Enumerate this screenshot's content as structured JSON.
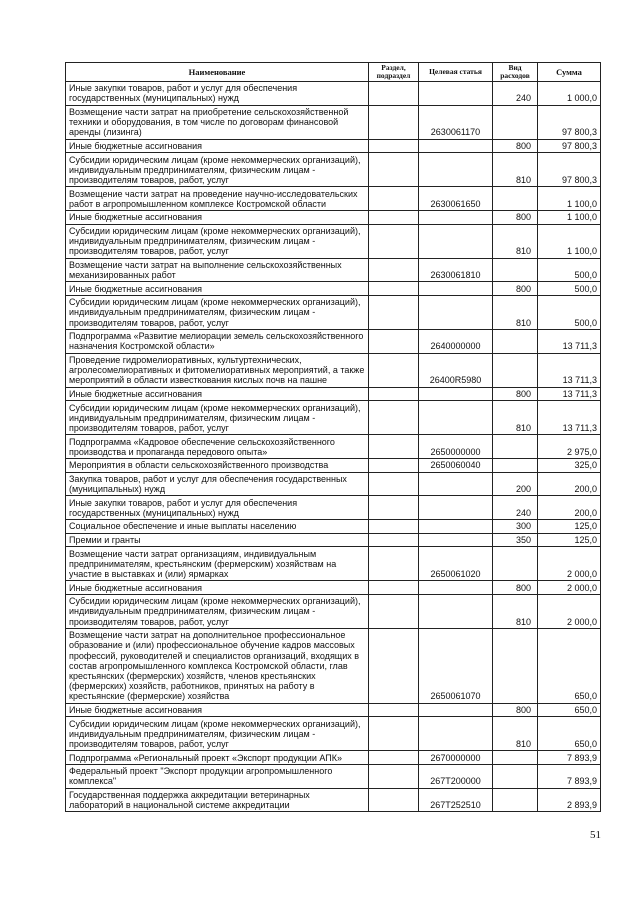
{
  "table": {
    "headers": [
      "Наименование",
      "Раздел, подраздел",
      "Целевая статья",
      "Вид расходов",
      "Сумма"
    ],
    "rows": [
      {
        "name": "Иные закупки товаров, работ и услуг для обеспечения государственных (муниципальных) нужд",
        "section": "",
        "target": "",
        "type": "240",
        "sum": "1 000,0"
      },
      {
        "name": "Возмещение части затрат на приобретение сельскохозяйственной техники и оборудования, в том числе по договорам финансовой аренды (лизинга)",
        "section": "",
        "target": "2630061170",
        "type": "",
        "sum": "97 800,3"
      },
      {
        "name": "Иные бюджетные ассигнования",
        "section": "",
        "target": "",
        "type": "800",
        "sum": "97 800,3"
      },
      {
        "name": "Субсидии юридическим лицам (кроме некоммерческих организаций), индивидуальным предпринимателям, физическим лицам - производителям товаров, работ, услуг",
        "section": "",
        "target": "",
        "type": "810",
        "sum": "97 800,3"
      },
      {
        "name": "Возмещение части затрат на проведение научно-исследовательских работ в агропромышленном комплексе Костромской области",
        "section": "",
        "target": "2630061650",
        "type": "",
        "sum": "1 100,0"
      },
      {
        "name": "Иные бюджетные ассигнования",
        "section": "",
        "target": "",
        "type": "800",
        "sum": "1 100,0"
      },
      {
        "name": "Субсидии юридическим лицам (кроме некоммерческих организаций), индивидуальным предпринимателям, физическим лицам - производителям товаров, работ, услуг",
        "section": "",
        "target": "",
        "type": "810",
        "sum": "1 100,0"
      },
      {
        "name": "Возмещение части затрат на выполнение сельскохозяйственных механизированных работ",
        "section": "",
        "target": "2630061810",
        "type": "",
        "sum": "500,0"
      },
      {
        "name": "Иные бюджетные ассигнования",
        "section": "",
        "target": "",
        "type": "800",
        "sum": "500,0"
      },
      {
        "name": "Субсидии юридическим лицам (кроме некоммерческих организаций), индивидуальным предпринимателям, физическим лицам - производителям товаров, работ, услуг",
        "section": "",
        "target": "",
        "type": "810",
        "sum": "500,0"
      },
      {
        "name": "Подпрограмма «Развитие мелиорации земель сельскохозяйственного назначения Костромской области»",
        "section": "",
        "target": "2640000000",
        "type": "",
        "sum": "13 711,3"
      },
      {
        "name": "Проведение гидромелиоративных, культуртехнических, агролесомелиоративных и фитомелиоративных мероприятий, а также мероприятий в области известкования кислых почв на пашне",
        "section": "",
        "target": "26400R5980",
        "type": "",
        "sum": "13 711,3"
      },
      {
        "name": "Иные бюджетные ассигнования",
        "section": "",
        "target": "",
        "type": "800",
        "sum": "13 711,3"
      },
      {
        "name": "Субсидии юридическим лицам (кроме некоммерческих организаций), индивидуальным предпринимателям, физическим лицам - производителям товаров, работ, услуг",
        "section": "",
        "target": "",
        "type": "810",
        "sum": "13 711,3"
      },
      {
        "name": "Подпрограмма «Кадровое обеспечение сельскохозяйственного производства и пропаганда передового опыта»",
        "section": "",
        "target": "2650000000",
        "type": "",
        "sum": "2 975,0"
      },
      {
        "name": "Мероприятия в области сельскохозяйственного производства",
        "section": "",
        "target": "2650060040",
        "type": "",
        "sum": "325,0"
      },
      {
        "name": "Закупка товаров, работ и услуг для обеспечения государственных (муниципальных) нужд",
        "section": "",
        "target": "",
        "type": "200",
        "sum": "200,0"
      },
      {
        "name": "Иные закупки товаров, работ и услуг для обеспечения государственных (муниципальных) нужд",
        "section": "",
        "target": "",
        "type": "240",
        "sum": "200,0"
      },
      {
        "name": "Социальное обеспечение и иные выплаты населению",
        "section": "",
        "target": "",
        "type": "300",
        "sum": "125,0"
      },
      {
        "name": "Премии и гранты",
        "section": "",
        "target": "",
        "type": "350",
        "sum": "125,0"
      },
      {
        "name": "Возмещение части затрат организациям, индивидуальным предпринимателям, крестьянским (фермерским) хозяйствам на участие в выставках и (или) ярмарках",
        "section": "",
        "target": "2650061020",
        "type": "",
        "sum": "2 000,0"
      },
      {
        "name": "Иные бюджетные ассигнования",
        "section": "",
        "target": "",
        "type": "800",
        "sum": "2 000,0"
      },
      {
        "name": "Субсидии юридическим лицам (кроме некоммерческих организаций), индивидуальным предпринимателям, физическим лицам - производителям товаров, работ, услуг",
        "section": "",
        "target": "",
        "type": "810",
        "sum": "2 000,0"
      },
      {
        "name": "Возмещение части затрат на дополнительное профессиональное образование и (или) профессиональное обучение кадров массовых профессий, руководителей и специалистов организаций, входящих в состав агропромышленного комплекса Костромской области, глав крестьянских (фермерских) хозяйств, членов крестьянских (фермерских) хозяйств, работников, принятых на работу в крестьянские (фермерские) хозяйства",
        "section": "",
        "target": "2650061070",
        "type": "",
        "sum": "650,0"
      },
      {
        "name": "Иные бюджетные ассигнования",
        "section": "",
        "target": "",
        "type": "800",
        "sum": "650,0"
      },
      {
        "name": "Субсидии юридическим лицам (кроме некоммерческих организаций), индивидуальным предпринимателям, физическим лицам - производителям товаров, работ, услуг",
        "section": "",
        "target": "",
        "type": "810",
        "sum": "650,0"
      },
      {
        "name": "Подпрограмма «Региональный проект «Экспорт продукции АПК»",
        "section": "",
        "target": "2670000000",
        "type": "",
        "sum": "7 893,9"
      },
      {
        "name": "Федеральный проект \"Экспорт продукции агропромышленного комплекса\"",
        "section": "",
        "target": "267T200000",
        "type": "",
        "sum": "7 893,9"
      },
      {
        "name": "Государственная поддержка аккредитации ветеринарных лабораторий в национальной системе аккредитации",
        "section": "",
        "target": "267T252510",
        "type": "",
        "sum": "2 893,9"
      }
    ]
  },
  "page_number": "51"
}
